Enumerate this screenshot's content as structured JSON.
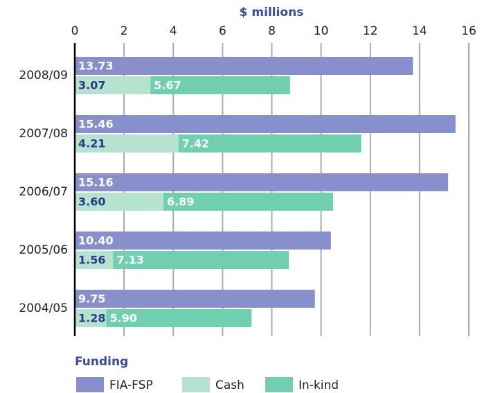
{
  "chart_data": {
    "type": "bar",
    "orientation": "horizontal",
    "x_axis_label": "$ millions",
    "categories": [
      "2008/09",
      "2007/08",
      "2006/07",
      "2005/06",
      "2004/05"
    ],
    "series": [
      {
        "name": "FIA-FSP",
        "color": "#8890cc",
        "label_color": "#ffffff",
        "values": [
          13.73,
          15.46,
          15.16,
          10.4,
          9.75
        ],
        "value_labels": [
          "13.73",
          "15.46",
          "15.16",
          "10.40",
          "9.75"
        ]
      },
      {
        "name": "Cash",
        "color": "#b5e3cf",
        "label_color": "#2a3a8a",
        "values": [
          3.07,
          4.21,
          3.6,
          1.56,
          1.28
        ],
        "value_labels": [
          "3.07",
          "4.21",
          "3.60",
          "1.56",
          "1.28"
        ]
      },
      {
        "name": "In-kind",
        "color": "#6fcfae",
        "label_color": "#ffffff",
        "values": [
          5.67,
          7.42,
          6.89,
          7.13,
          5.9
        ],
        "value_labels": [
          "5.67",
          "7.42",
          "6.89",
          "7.13",
          "5.90"
        ]
      }
    ],
    "xlim": [
      0,
      16
    ],
    "xticks": [
      0,
      2,
      4,
      6,
      8,
      10,
      12,
      14,
      16
    ],
    "grid": true,
    "legend_title": "Funding",
    "legend_position": "bottom"
  }
}
